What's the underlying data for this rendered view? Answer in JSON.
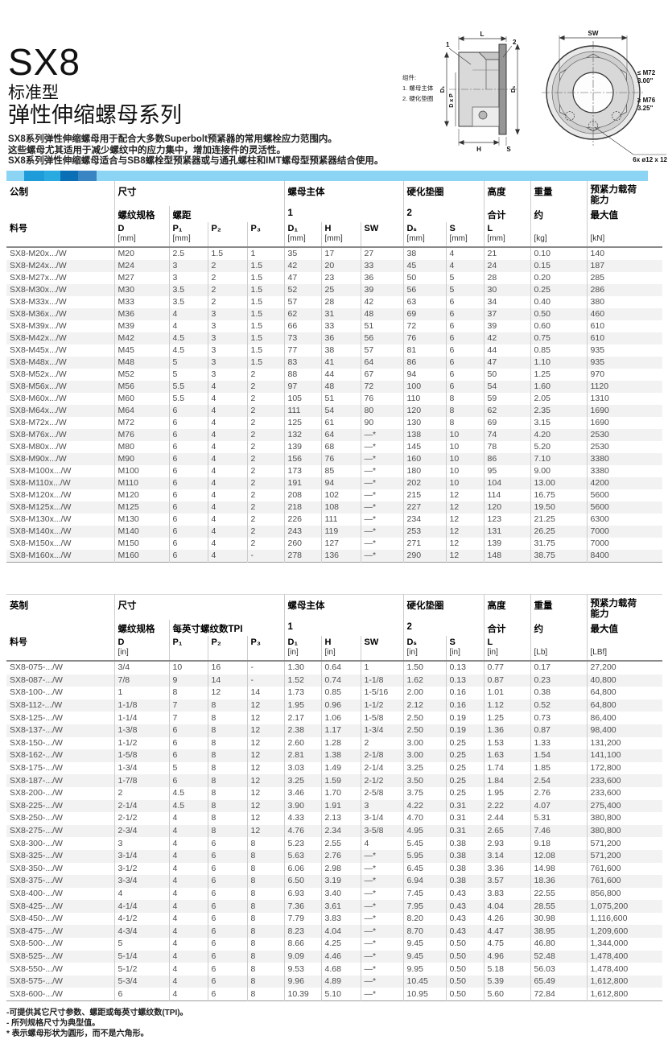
{
  "page": {
    "title": "SX8",
    "subtitle1": "标准型",
    "subtitle2": "弹性伸缩螺母系列",
    "description": [
      "SX8系列弹性伸缩螺母用于配合大多数Superbolt预紧器的常用螺栓应力范围内。",
      "这些螺母尤其适用于减少螺纹中的应力集中，增加连接件的灵活性。",
      "SX8系列弹性伸缩螺母适合与SB8螺栓型预紧器或与通孔螺柱和IMT螺母型预紧器结合使用。"
    ]
  },
  "drawing": {
    "legend_title": "组件:",
    "legend_item1": "1. 螺母主体",
    "legend_item2": "2. 硬化垫圈",
    "dim_L": "L",
    "callout_1": "1",
    "callout_2": "2",
    "dim_D1": "D₁",
    "dim_DxP": "D x P",
    "dim_Ds": "Dₛ",
    "dim_H": "H",
    "dim_S": "S",
    "dim_SW": "SW",
    "label_m72": "≤ M72",
    "label_m72_in": "3.00\"",
    "label_m76": "≥ M76",
    "label_m76_in": "3.25\"",
    "label_holes": "6x ø12 x 12"
  },
  "colors": {
    "bar_base": "#8CD4F4",
    "bar_seg1": "#1E9CD9",
    "bar_seg2": "#29ABE2",
    "bar_seg3": "#0A6FB5",
    "bar_seg4": "#3984C2"
  },
  "metric_table": {
    "section_label": "公制",
    "groups": {
      "size": "尺寸",
      "body": "螺母主体",
      "washer": "硬化垫圈",
      "height": "高度",
      "weight": "重量",
      "preload": "预紧力载荷能力"
    },
    "subs": {
      "thread": "螺纹规格",
      "pitch": "螺距",
      "one": "1",
      "two": "2",
      "total": "合计",
      "approx": "约",
      "max": "最大值"
    },
    "columns": [
      {
        "label": "料号",
        "unit": ""
      },
      {
        "label": "D",
        "unit": "[mm]"
      },
      {
        "label": "P₁",
        "unit": "[mm]"
      },
      {
        "label": "P₂",
        "unit": ""
      },
      {
        "label": "P₃",
        "unit": ""
      },
      {
        "label": "D₁",
        "unit": "[mm]"
      },
      {
        "label": "H",
        "unit": "[mm]"
      },
      {
        "label": "SW",
        "unit": ""
      },
      {
        "label": "Dₛ",
        "unit": "[mm]"
      },
      {
        "label": "S",
        "unit": "[mm]"
      },
      {
        "label": "L",
        "unit": "[mm]"
      },
      {
        "label": "",
        "unit": "[kg]"
      },
      {
        "label": "",
        "unit": "[kN]"
      }
    ],
    "rows": [
      [
        "SX8-M20x.../W",
        "M20",
        "2.5",
        "1.5",
        "1",
        "35",
        "17",
        "27",
        "38",
        "4",
        "21",
        "0.10",
        "140"
      ],
      [
        "SX8-M24x.../W",
        "M24",
        "3",
        "2",
        "1.5",
        "42",
        "20",
        "33",
        "45",
        "4",
        "24",
        "0.15",
        "187"
      ],
      [
        "SX8-M27x.../W",
        "M27",
        "3",
        "2",
        "1.5",
        "47",
        "23",
        "36",
        "50",
        "5",
        "28",
        "0.20",
        "285"
      ],
      [
        "SX8-M30x.../W",
        "M30",
        "3.5",
        "2",
        "1.5",
        "52",
        "25",
        "39",
        "56",
        "5",
        "30",
        "0.25",
        "286"
      ],
      [
        "SX8-M33x.../W",
        "M33",
        "3.5",
        "2",
        "1.5",
        "57",
        "28",
        "42",
        "63",
        "6",
        "34",
        "0.40",
        "380"
      ],
      [
        "SX8-M36x.../W",
        "M36",
        "4",
        "3",
        "1.5",
        "62",
        "31",
        "48",
        "69",
        "6",
        "37",
        "0.50",
        "460"
      ],
      [
        "SX8-M39x.../W",
        "M39",
        "4",
        "3",
        "1.5",
        "66",
        "33",
        "51",
        "72",
        "6",
        "39",
        "0.60",
        "610"
      ],
      [
        "SX8-M42x.../W",
        "M42",
        "4.5",
        "3",
        "1.5",
        "73",
        "36",
        "56",
        "76",
        "6",
        "42",
        "0.75",
        "610"
      ],
      [
        "SX8-M45x.../W",
        "M45",
        "4.5",
        "3",
        "1.5",
        "77",
        "38",
        "57",
        "81",
        "6",
        "44",
        "0.85",
        "935"
      ],
      [
        "SX8-M48x.../W",
        "M48",
        "5",
        "3",
        "1.5",
        "83",
        "41",
        "64",
        "86",
        "6",
        "47",
        "1.10",
        "935"
      ],
      [
        "SX8-M52x.../W",
        "M52",
        "5",
        "3",
        "2",
        "88",
        "44",
        "67",
        "94",
        "6",
        "50",
        "1.25",
        "970"
      ],
      [
        "SX8-M56x.../W",
        "M56",
        "5.5",
        "4",
        "2",
        "97",
        "48",
        "72",
        "100",
        "6",
        "54",
        "1.60",
        "1120"
      ],
      [
        "SX8-M60x.../W",
        "M60",
        "5.5",
        "4",
        "2",
        "105",
        "51",
        "76",
        "110",
        "8",
        "59",
        "2.05",
        "1310"
      ],
      [
        "SX8-M64x.../W",
        "M64",
        "6",
        "4",
        "2",
        "111",
        "54",
        "80",
        "120",
        "8",
        "62",
        "2.35",
        "1690"
      ],
      [
        "SX8-M72x.../W",
        "M72",
        "6",
        "4",
        "2",
        "125",
        "61",
        "90",
        "130",
        "8",
        "69",
        "3.15",
        "1690"
      ],
      [
        "SX8-M76x.../W",
        "M76",
        "6",
        "4",
        "2",
        "132",
        "64",
        "—*",
        "138",
        "10",
        "74",
        "4.20",
        "2530"
      ],
      [
        "SX8-M80x.../W",
        "M80",
        "6",
        "4",
        "2",
        "139",
        "68",
        "—*",
        "145",
        "10",
        "78",
        "5.20",
        "2530"
      ],
      [
        "SX8-M90x.../W",
        "M90",
        "6",
        "4",
        "2",
        "156",
        "76",
        "—*",
        "160",
        "10",
        "86",
        "7.10",
        "3380"
      ],
      [
        "SX8-M100x.../W",
        "M100",
        "6",
        "4",
        "2",
        "173",
        "85",
        "—*",
        "180",
        "10",
        "95",
        "9.00",
        "3380"
      ],
      [
        "SX8-M110x.../W",
        "M110",
        "6",
        "4",
        "2",
        "191",
        "94",
        "—*",
        "202",
        "10",
        "104",
        "13.00",
        "4200"
      ],
      [
        "SX8-M120x.../W",
        "M120",
        "6",
        "4",
        "2",
        "208",
        "102",
        "—*",
        "215",
        "12",
        "114",
        "16.75",
        "5600"
      ],
      [
        "SX8-M125x.../W",
        "M125",
        "6",
        "4",
        "2",
        "218",
        "108",
        "—*",
        "227",
        "12",
        "120",
        "19.50",
        "5600"
      ],
      [
        "SX8-M130x.../W",
        "M130",
        "6",
        "4",
        "2",
        "226",
        "111",
        "—*",
        "234",
        "12",
        "123",
        "21.25",
        "6300"
      ],
      [
        "SX8-M140x.../W",
        "M140",
        "6",
        "4",
        "2",
        "243",
        "119",
        "—*",
        "253",
        "12",
        "131",
        "26.25",
        "7000"
      ],
      [
        "SX8-M150x.../W",
        "M150",
        "6",
        "4",
        "2",
        "260",
        "127",
        "—*",
        "271",
        "12",
        "139",
        "31.75",
        "7000"
      ],
      [
        "SX8-M160x.../W",
        "M160",
        "6",
        "4",
        "-",
        "278",
        "136",
        "—*",
        "290",
        "12",
        "148",
        "38.75",
        "8400"
      ]
    ]
  },
  "imperial_table": {
    "section_label": "英制",
    "groups": {
      "size": "尺寸",
      "body": "螺母主体",
      "washer": "硬化垫圈",
      "height": "高度",
      "weight": "重量",
      "preload": "预紧力载荷能力"
    },
    "subs": {
      "thread": "螺纹规格",
      "pitch": "每英寸螺纹数TPI",
      "one": "1",
      "two": "2",
      "total": "合计",
      "approx": "约",
      "max": "最大值"
    },
    "columns": [
      {
        "label": "料号",
        "unit": ""
      },
      {
        "label": "D",
        "unit": "[in]"
      },
      {
        "label": "P₁",
        "unit": ""
      },
      {
        "label": "P₂",
        "unit": ""
      },
      {
        "label": "P₃",
        "unit": ""
      },
      {
        "label": "D₁",
        "unit": "[in]"
      },
      {
        "label": "H",
        "unit": "[in]"
      },
      {
        "label": "SW",
        "unit": ""
      },
      {
        "label": "Dₛ",
        "unit": "[in]"
      },
      {
        "label": "S",
        "unit": "[in]"
      },
      {
        "label": "L",
        "unit": "[in]"
      },
      {
        "label": "",
        "unit": "[Lb]"
      },
      {
        "label": "",
        "unit": "[LBf]"
      }
    ],
    "rows": [
      [
        "SX8-075-.../W",
        "3/4",
        "10",
        "16",
        "-",
        "1.30",
        "0.64",
        "1",
        "1.50",
        "0.13",
        "0.77",
        "0.17",
        "27,200"
      ],
      [
        "SX8-087-.../W",
        "7/8",
        "9",
        "14",
        "-",
        "1.52",
        "0.74",
        "1-1/8",
        "1.62",
        "0.13",
        "0.87",
        "0.23",
        "40,800"
      ],
      [
        "SX8-100-.../W",
        "1",
        "8",
        "12",
        "14",
        "1.73",
        "0.85",
        "1-5/16",
        "2.00",
        "0.16",
        "1.01",
        "0.38",
        "64,800"
      ],
      [
        "SX8-112-.../W",
        "1-1/8",
        "7",
        "8",
        "12",
        "1.95",
        "0.96",
        "1-1/2",
        "2.12",
        "0.16",
        "1.12",
        "0.52",
        "64,800"
      ],
      [
        "SX8-125-.../W",
        "1-1/4",
        "7",
        "8",
        "12",
        "2.17",
        "1.06",
        "1-5/8",
        "2.50",
        "0.19",
        "1.25",
        "0.73",
        "86,400"
      ],
      [
        "SX8-137-.../W",
        "1-3/8",
        "6",
        "8",
        "12",
        "2.38",
        "1.17",
        "1-3/4",
        "2.50",
        "0.19",
        "1.36",
        "0.87",
        "98,400"
      ],
      [
        "SX8-150-.../W",
        "1-1/2",
        "6",
        "8",
        "12",
        "2.60",
        "1.28",
        "2",
        "3.00",
        "0.25",
        "1.53",
        "1.33",
        "131,200"
      ],
      [
        "SX8-162-.../W",
        "1-5/8",
        "6",
        "8",
        "12",
        "2.81",
        "1.38",
        "2-1/8",
        "3.00",
        "0.25",
        "1.63",
        "1.54",
        "141,100"
      ],
      [
        "SX8-175-.../W",
        "1-3/4",
        "5",
        "8",
        "12",
        "3.03",
        "1.49",
        "2-1/4",
        "3.25",
        "0.25",
        "1.74",
        "1.85",
        "172,800"
      ],
      [
        "SX8-187-.../W",
        "1-7/8",
        "6",
        "8",
        "12",
        "3.25",
        "1.59",
        "2-1/2",
        "3.50",
        "0.25",
        "1.84",
        "2.54",
        "233,600"
      ],
      [
        "SX8-200-.../W",
        "2",
        "4.5",
        "8",
        "12",
        "3.46",
        "1.70",
        "2-5/8",
        "3.75",
        "0.25",
        "1.95",
        "2.76",
        "233,600"
      ],
      [
        "SX8-225-.../W",
        "2-1/4",
        "4.5",
        "8",
        "12",
        "3.90",
        "1.91",
        "3",
        "4.22",
        "0.31",
        "2.22",
        "4.07",
        "275,400"
      ],
      [
        "SX8-250-.../W",
        "2-1/2",
        "4",
        "8",
        "12",
        "4.33",
        "2.13",
        "3-1/4",
        "4.70",
        "0.31",
        "2.44",
        "5.31",
        "380,800"
      ],
      [
        "SX8-275-.../W",
        "2-3/4",
        "4",
        "8",
        "12",
        "4.76",
        "2.34",
        "3-5/8",
        "4.95",
        "0.31",
        "2.65",
        "7.46",
        "380,800"
      ],
      [
        "SX8-300-.../W",
        "3",
        "4",
        "6",
        "8",
        "5.23",
        "2.55",
        "4",
        "5.45",
        "0.38",
        "2.93",
        "9.18",
        "571,200"
      ],
      [
        "SX8-325-.../W",
        "3-1/4",
        "4",
        "6",
        "8",
        "5.63",
        "2.76",
        "—*",
        "5.95",
        "0.38",
        "3.14",
        "12.08",
        "571,200"
      ],
      [
        "SX8-350-.../W",
        "3-1/2",
        "4",
        "6",
        "8",
        "6.06",
        "2.98",
        "—*",
        "6.45",
        "0.38",
        "3.36",
        "14.98",
        "761,600"
      ],
      [
        "SX8-375-.../W",
        "3-3/4",
        "4",
        "6",
        "8",
        "6.50",
        "3.19",
        "—*",
        "6.94",
        "0.38",
        "3.57",
        "18.36",
        "761,600"
      ],
      [
        "SX8-400-.../W",
        "4",
        "4",
        "6",
        "8",
        "6.93",
        "3.40",
        "—*",
        "7.45",
        "0.43",
        "3.83",
        "22.55",
        "856,800"
      ],
      [
        "SX8-425-.../W",
        "4-1/4",
        "4",
        "6",
        "8",
        "7.36",
        "3.61",
        "—*",
        "7.95",
        "0.43",
        "4.04",
        "28.55",
        "1,075,200"
      ],
      [
        "SX8-450-.../W",
        "4-1/2",
        "4",
        "6",
        "8",
        "7.79",
        "3.83",
        "—*",
        "8.20",
        "0.43",
        "4.26",
        "30.98",
        "1,116,600"
      ],
      [
        "SX8-475-.../W",
        "4-3/4",
        "4",
        "6",
        "8",
        "8.23",
        "4.04",
        "—*",
        "8.70",
        "0.43",
        "4.47",
        "38.95",
        "1,209,600"
      ],
      [
        "SX8-500-.../W",
        "5",
        "4",
        "6",
        "8",
        "8.66",
        "4.25",
        "—*",
        "9.45",
        "0.50",
        "4.75",
        "46.80",
        "1,344,000"
      ],
      [
        "SX8-525-.../W",
        "5-1/4",
        "4",
        "6",
        "8",
        "9.09",
        "4.46",
        "—*",
        "9.45",
        "0.50",
        "4.96",
        "52.48",
        "1,478,400"
      ],
      [
        "SX8-550-.../W",
        "5-1/2",
        "4",
        "6",
        "8",
        "9.53",
        "4.68",
        "—*",
        "9.95",
        "0.50",
        "5.18",
        "56.03",
        "1,478,400"
      ],
      [
        "SX8-575-.../W",
        "5-3/4",
        "4",
        "6",
        "8",
        "9.96",
        "4.89",
        "—*",
        "10.45",
        "0.50",
        "5.39",
        "65.49",
        "1,612,800"
      ],
      [
        "SX8-600-.../W",
        "6",
        "4",
        "6",
        "8",
        "10.39",
        "5.10",
        "—*",
        "10.95",
        "0.50",
        "5.60",
        "72.84",
        "1,612,800"
      ]
    ]
  },
  "footnotes": [
    "-可提供其它尺寸参数、螺距或每英寸螺纹数(TPI)。",
    "- 所列规格尺寸为典型值。",
    "* 表示螺母形状为圆形，而不是六角形。"
  ]
}
